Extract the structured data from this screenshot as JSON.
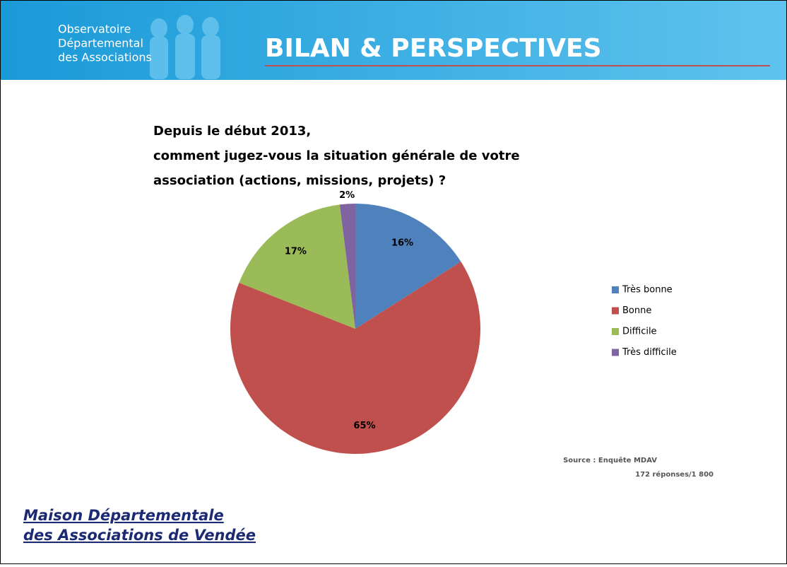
{
  "header": {
    "logo": [
      "Observatoire",
      "Départemental",
      "des Associations"
    ],
    "title": "BILAN & PERSPECTIVES"
  },
  "chart_data": {
    "type": "pie",
    "title": [
      "Depuis le début 2013,",
      "comment jugez-vous la situation générale de votre",
      "association (actions, missions, projets) ?"
    ],
    "categories": [
      "Très bonne",
      "Bonne",
      "Difficile",
      "Très difficile"
    ],
    "values": [
      16,
      65,
      17,
      2
    ],
    "value_labels": [
      "16%",
      "65%",
      "17%",
      "2%"
    ],
    "colors": [
      "#4f81bd",
      "#c0504d",
      "#9bbb59",
      "#8064a2"
    ],
    "legend": "right"
  },
  "source": [
    "Source : Enquête MDAV",
    "172 réponses/1 800"
  ],
  "footer": {
    "logo": [
      "Maison Départementale",
      "des Associations de Vendée"
    ]
  }
}
